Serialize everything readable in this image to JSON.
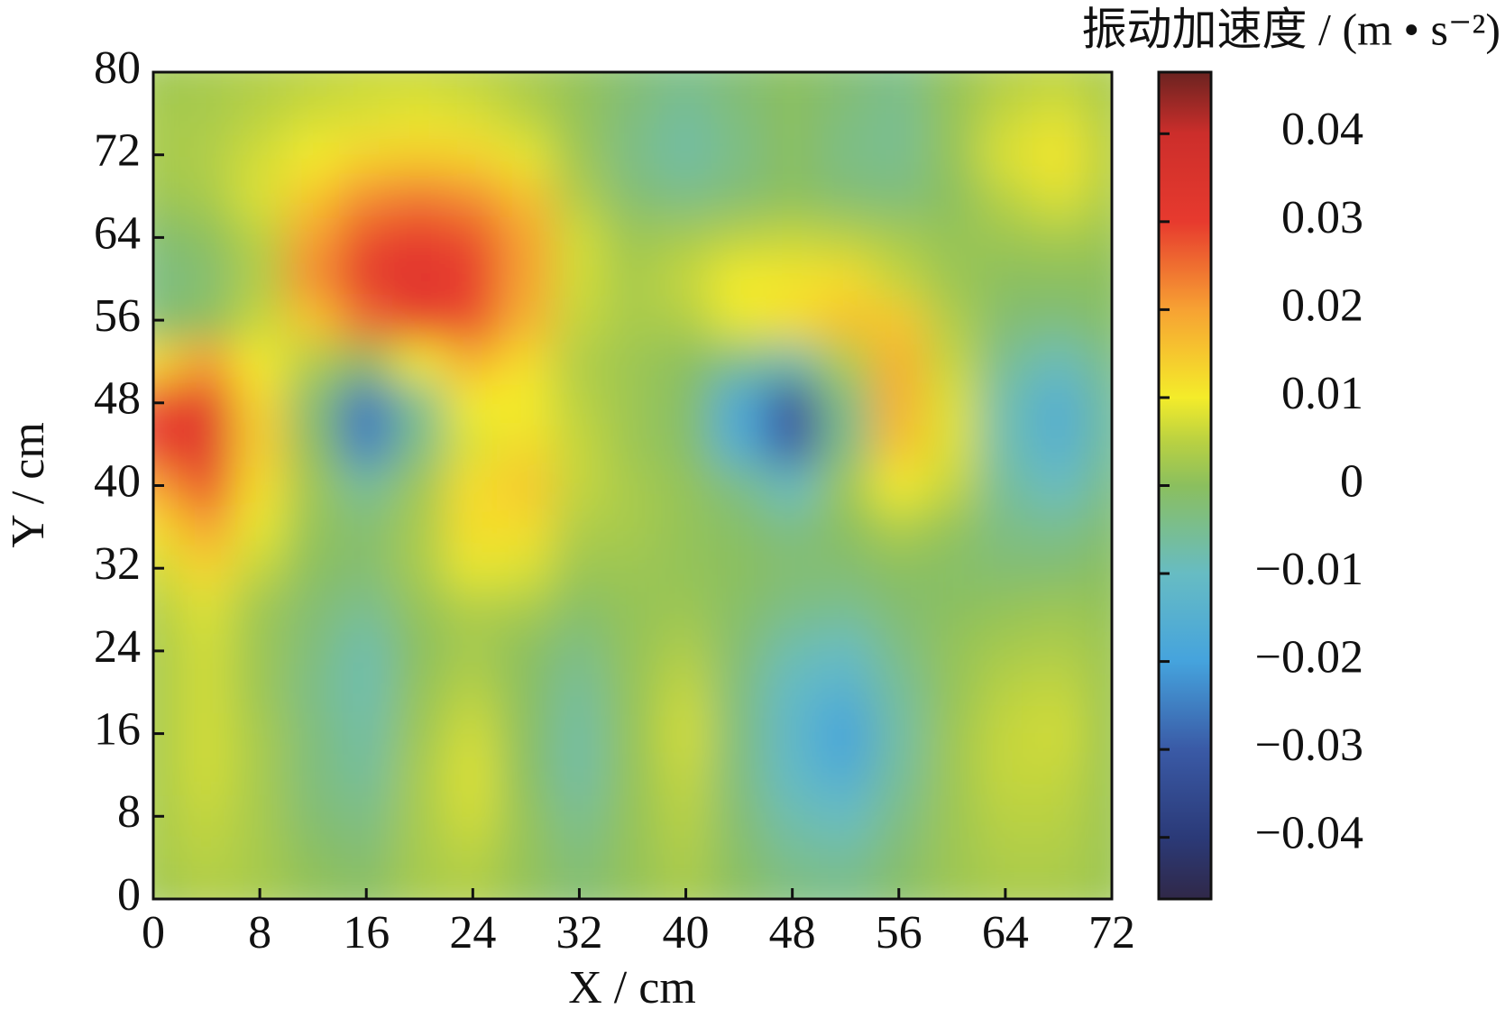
{
  "chart_data": {
    "type": "heatmap",
    "colorbar_label": "振动加速度 / (m • s⁻²)",
    "xlabel": "X / cm",
    "ylabel": "Y / cm",
    "xlim": [
      0,
      72
    ],
    "ylim": [
      0,
      80
    ],
    "xticks": [
      0,
      8,
      16,
      24,
      32,
      40,
      48,
      56,
      64,
      72
    ],
    "yticks": [
      0,
      8,
      16,
      24,
      32,
      40,
      48,
      56,
      64,
      72,
      80
    ],
    "zlim": [
      -0.047,
      0.047
    ],
    "zticks": [
      {
        "value": -0.04,
        "label": "−0.04"
      },
      {
        "value": -0.03,
        "label": "−0.03"
      },
      {
        "value": -0.02,
        "label": "−0.02"
      },
      {
        "value": -0.01,
        "label": "−0.01"
      },
      0,
      0.01,
      0.02,
      0.03,
      0.04
    ],
    "colorscale": [
      [
        -0.047,
        "#302848"
      ],
      [
        -0.04,
        "#2b3a78"
      ],
      [
        -0.03,
        "#3a5aa6"
      ],
      [
        -0.02,
        "#45a3dd"
      ],
      [
        -0.01,
        "#67bcc3"
      ],
      [
        0,
        "#8bbf5e"
      ],
      [
        0.005,
        "#b9d142"
      ],
      [
        0.01,
        "#f4ec2a"
      ],
      [
        0.02,
        "#f7a233"
      ],
      [
        0.03,
        "#e73a2e"
      ],
      [
        0.04,
        "#cc2e2b"
      ],
      [
        0.047,
        "#6b2320"
      ]
    ],
    "x": [
      0,
      4,
      8,
      12,
      16,
      20,
      24,
      28,
      32,
      36,
      40,
      44,
      48,
      52,
      56,
      60,
      64,
      68,
      72
    ],
    "y": [
      0,
      4,
      8,
      12,
      16,
      20,
      24,
      28,
      32,
      36,
      40,
      44,
      48,
      52,
      56,
      60,
      64,
      68,
      72,
      76,
      80
    ],
    "z": [
      [
        0.002,
        0.004,
        0.003,
        0.001,
        0.0,
        0.003,
        0.004,
        0.001,
        -0.002,
        0.001,
        0.003,
        0.0,
        -0.003,
        -0.004,
        -0.001,
        0.002,
        0.003,
        0.003,
        0.002
      ],
      [
        0.003,
        0.005,
        0.003,
        0.0,
        -0.002,
        0.003,
        0.005,
        0.001,
        -0.003,
        0.001,
        0.004,
        -0.001,
        -0.005,
        -0.006,
        -0.002,
        0.002,
        0.004,
        0.004,
        0.002
      ],
      [
        0.003,
        0.006,
        0.003,
        -0.002,
        -0.004,
        0.003,
        0.007,
        0.001,
        -0.005,
        0.001,
        0.005,
        -0.002,
        -0.008,
        -0.01,
        -0.004,
        0.002,
        0.005,
        0.005,
        0.002
      ],
      [
        0.003,
        0.007,
        0.003,
        -0.003,
        -0.006,
        0.003,
        0.008,
        0.0,
        -0.007,
        0.001,
        0.006,
        -0.003,
        -0.011,
        -0.016,
        -0.006,
        0.002,
        0.006,
        0.006,
        0.002
      ],
      [
        0.003,
        0.007,
        0.003,
        -0.003,
        -0.007,
        0.002,
        0.007,
        0.0,
        -0.007,
        0.001,
        0.007,
        -0.003,
        -0.012,
        -0.02,
        -0.007,
        0.002,
        0.006,
        0.007,
        0.002
      ],
      [
        0.003,
        0.007,
        0.002,
        -0.004,
        -0.008,
        0.001,
        0.005,
        0.0,
        -0.006,
        0.001,
        0.006,
        -0.003,
        -0.011,
        -0.015,
        -0.006,
        0.001,
        0.005,
        0.006,
        0.002
      ],
      [
        0.003,
        0.007,
        0.002,
        -0.003,
        -0.008,
        0.0,
        0.003,
        0.0,
        -0.004,
        0.001,
        0.004,
        -0.002,
        -0.008,
        -0.01,
        -0.004,
        0.001,
        0.003,
        0.004,
        0.002
      ],
      [
        0.004,
        0.008,
        0.002,
        -0.002,
        -0.005,
        0.001,
        0.004,
        0.003,
        -0.001,
        0.001,
        0.002,
        -0.001,
        -0.004,
        -0.005,
        -0.002,
        0.0,
        0.001,
        0.002,
        0.001
      ],
      [
        0.007,
        0.013,
        0.006,
        0.0,
        -0.002,
        0.003,
        0.009,
        0.008,
        0.002,
        0.002,
        0.001,
        0.0,
        -0.002,
        -0.002,
        0.0,
        -0.001,
        -0.002,
        -0.002,
        0.0
      ],
      [
        0.012,
        0.02,
        0.009,
        0.001,
        -0.002,
        0.003,
        0.012,
        0.012,
        0.004,
        0.003,
        0.001,
        -0.001,
        -0.004,
        0.0,
        0.004,
        0.001,
        -0.004,
        -0.005,
        -0.002
      ],
      [
        0.02,
        0.028,
        0.012,
        0.002,
        -0.006,
        0.002,
        0.012,
        0.015,
        0.006,
        0.003,
        0.001,
        -0.004,
        -0.01,
        0.002,
        0.01,
        0.006,
        -0.006,
        -0.01,
        -0.004
      ],
      [
        0.03,
        0.033,
        0.014,
        0.0,
        -0.025,
        -0.004,
        0.008,
        0.012,
        0.006,
        0.002,
        -0.001,
        -0.016,
        -0.03,
        -0.004,
        0.016,
        0.008,
        -0.008,
        -0.015,
        -0.006
      ],
      [
        0.028,
        0.032,
        0.013,
        -0.002,
        -0.026,
        -0.005,
        0.01,
        0.01,
        0.005,
        0.002,
        -0.001,
        -0.018,
        -0.032,
        -0.004,
        0.018,
        0.008,
        -0.008,
        -0.016,
        -0.006
      ],
      [
        0.012,
        0.02,
        0.01,
        0.004,
        0.0,
        0.01,
        0.018,
        0.012,
        0.004,
        0.002,
        0.0,
        -0.004,
        -0.008,
        0.004,
        0.018,
        0.006,
        -0.005,
        -0.009,
        -0.004
      ],
      [
        -0.002,
        0.0,
        0.006,
        0.015,
        0.025,
        0.03,
        0.028,
        0.018,
        0.006,
        0.003,
        0.004,
        0.009,
        0.012,
        0.016,
        0.015,
        0.004,
        -0.002,
        -0.003,
        -0.001
      ],
      [
        -0.004,
        -0.002,
        0.004,
        0.022,
        0.031,
        0.033,
        0.03,
        0.02,
        0.007,
        0.003,
        0.006,
        0.01,
        0.011,
        0.012,
        0.006,
        0.002,
        0.0,
        0.0,
        0.0
      ],
      [
        -0.002,
        0.0,
        0.005,
        0.02,
        0.028,
        0.03,
        0.028,
        0.02,
        0.007,
        0.002,
        0.003,
        0.005,
        0.006,
        0.005,
        0.003,
        0.001,
        0.002,
        0.003,
        0.002
      ],
      [
        0.002,
        0.003,
        0.008,
        0.015,
        0.022,
        0.024,
        0.022,
        0.016,
        0.004,
        -0.002,
        -0.004,
        -0.002,
        0.0,
        -0.002,
        -0.003,
        0.0,
        0.005,
        0.008,
        0.004
      ],
      [
        0.003,
        0.004,
        0.007,
        0.01,
        0.013,
        0.014,
        0.013,
        0.009,
        0.002,
        -0.004,
        -0.007,
        -0.004,
        0.0,
        -0.004,
        -0.005,
        0.001,
        0.008,
        0.011,
        0.005
      ],
      [
        0.003,
        0.003,
        0.005,
        0.007,
        0.008,
        0.009,
        0.008,
        0.005,
        0.001,
        -0.003,
        -0.006,
        -0.003,
        0.0,
        -0.003,
        -0.005,
        0.001,
        0.006,
        0.008,
        0.004
      ],
      [
        0.002,
        0.003,
        0.004,
        0.005,
        0.006,
        0.006,
        0.005,
        0.003,
        0.001,
        -0.002,
        -0.004,
        -0.002,
        0.0,
        -0.002,
        -0.004,
        0.001,
        0.004,
        0.005,
        0.003
      ]
    ]
  }
}
